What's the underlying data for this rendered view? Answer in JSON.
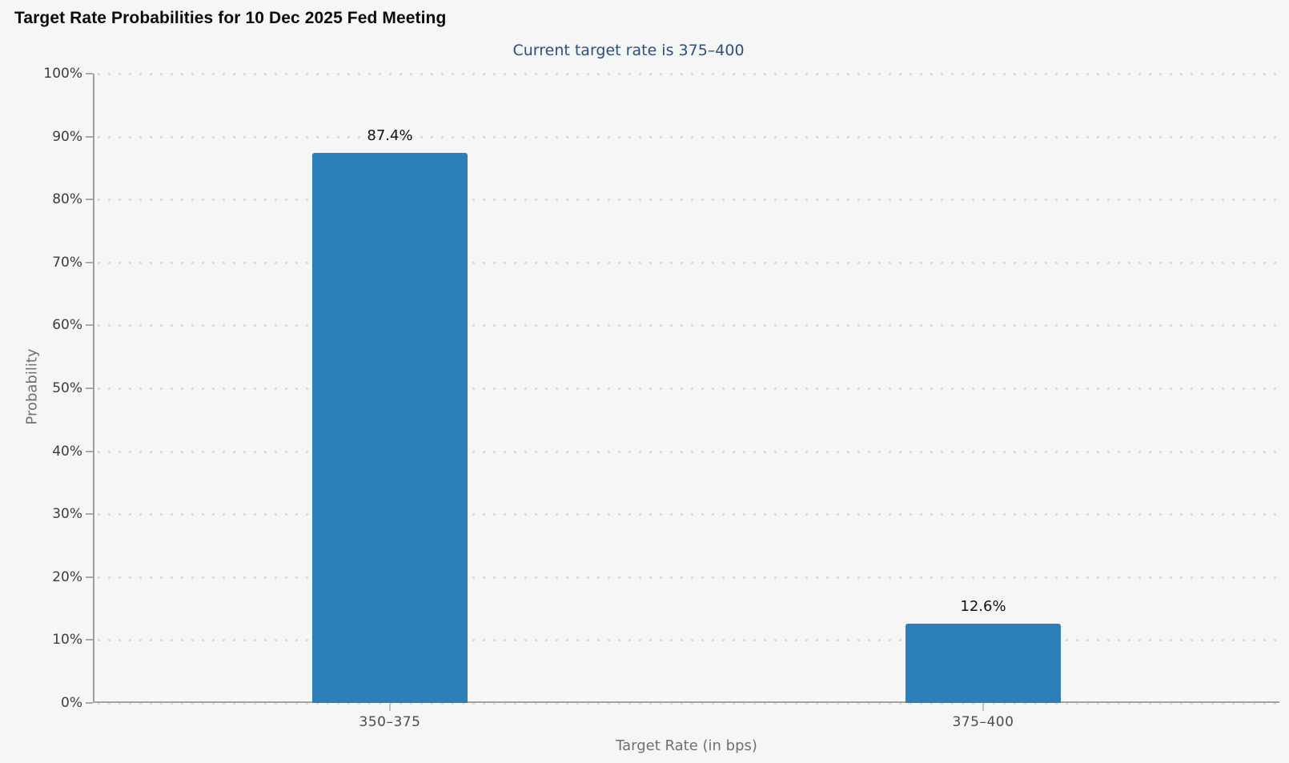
{
  "title": "Target Rate Probabilities for 10 Dec 2025 Fed Meeting",
  "subtitle": "Current target rate is 375–400",
  "chart_data": {
    "type": "bar",
    "title": "Target Rate Probabilities for 10 Dec 2025 Fed Meeting",
    "subtitle": "Current target rate is 375–400",
    "categories": [
      "350–375",
      "375–400"
    ],
    "values": [
      87.4,
      12.6
    ],
    "value_labels": [
      "87.4%",
      "12.6%"
    ],
    "xlabel": "Target Rate (in bps)",
    "ylabel": "Probability",
    "ylim": [
      0,
      100
    ],
    "y_tick_step": 10,
    "y_ticks": [
      "0%",
      "10%",
      "20%",
      "30%",
      "40%",
      "50%",
      "60%",
      "70%",
      "80%",
      "90%",
      "100%"
    ],
    "grid": "horizontal-dotted",
    "legend": "none",
    "colors": {
      "bar": "#2b80b9",
      "background": "#f6f6f6",
      "subtitle_text": "#2d4f82",
      "title_text": "#0b0b0b",
      "tick_label_text": "#3c3c3c",
      "axis_title_text": "#707070",
      "axis_line": "#a3a3a3",
      "grid_dot": "#dcdcdc"
    }
  }
}
